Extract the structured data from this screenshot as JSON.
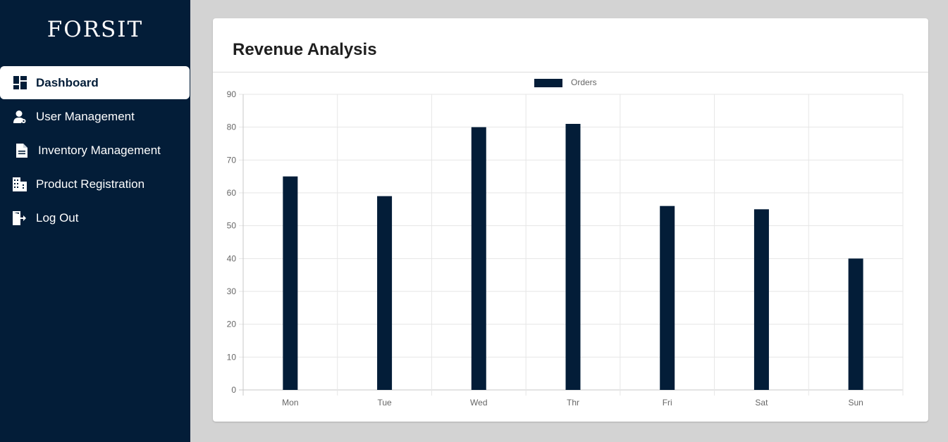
{
  "sidebar": {
    "brand": "FORSIT",
    "items": [
      {
        "label": "Dashboard",
        "icon": "dashboard-icon",
        "active": true
      },
      {
        "label": "User Management",
        "icon": "user-icon",
        "active": false
      },
      {
        "label": "Inventory Management",
        "icon": "document-icon",
        "active": false
      },
      {
        "label": "Product Registration",
        "icon": "building-icon",
        "active": false
      },
      {
        "label": "Log Out",
        "icon": "logout-icon",
        "active": false
      }
    ]
  },
  "main": {
    "title": "Revenue Analysis"
  },
  "colors": {
    "sidebar_bg": "#031d38",
    "bar": "#031d38",
    "page_bg": "#d3d3d3"
  },
  "chart_data": {
    "type": "bar",
    "categories": [
      "Mon",
      "Tue",
      "Wed",
      "Thr",
      "Fri",
      "Sat",
      "Sun"
    ],
    "series": [
      {
        "name": "Orders",
        "values": [
          65,
          59,
          80,
          81,
          56,
          55,
          40
        ]
      }
    ],
    "yticks": [
      0,
      10,
      20,
      30,
      40,
      50,
      60,
      70,
      80,
      90
    ],
    "ylim": [
      0,
      90
    ],
    "legend": "top-center",
    "grid": true
  }
}
